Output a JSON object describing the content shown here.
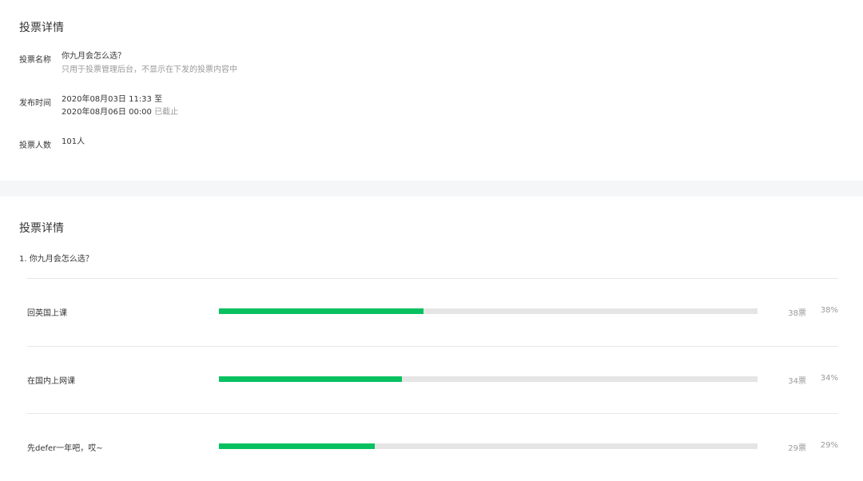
{
  "info": {
    "title": "投票详情",
    "name_label": "投票名称",
    "name": "你九月会怎么选？",
    "name_note": "只用于投票管理后台，不显示在下发的投票内容中",
    "time_label": "发布时间",
    "start": "2020年08月03日 11:33 至",
    "end": "2020年08月06日 00:00",
    "status": "已截止",
    "count_label": "投票人数",
    "count": "101人"
  },
  "results": {
    "title": "投票详情",
    "question": "1. 你九月会怎么选？",
    "accent": "#07c160",
    "options": [
      {
        "label": "回英国上课",
        "votes": "38票",
        "percent_text": "38%",
        "percent": 38
      },
      {
        "label": "在国内上网课",
        "votes": "34票",
        "percent_text": "34%",
        "percent": 34
      },
      {
        "label": "先defer一年吧，哎~",
        "votes": "29票",
        "percent_text": "29%",
        "percent": 29
      }
    ]
  }
}
